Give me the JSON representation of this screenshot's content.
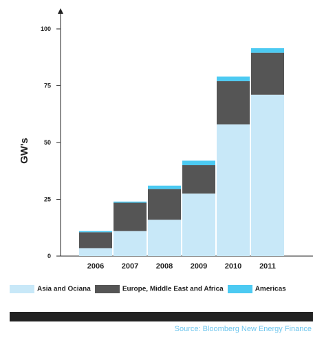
{
  "chart_data": {
    "type": "bar",
    "stacked": true,
    "ylabel": "GW's",
    "xlabel": "",
    "ylim": [
      0,
      100
    ],
    "yticks": [
      0,
      25,
      50,
      75,
      100
    ],
    "categories": [
      "2006",
      "2007",
      "2008",
      "2009",
      "2010",
      "2011"
    ],
    "series": [
      {
        "name": "Asia and Ociana",
        "color": "#c8e8f8",
        "values": [
          3.5,
          11,
          16,
          27.5,
          58,
          71
        ]
      },
      {
        "name": "Europe, Middle East and Africa",
        "color": "#555555",
        "values": [
          7,
          12.5,
          13.5,
          12.5,
          19,
          18.5
        ]
      },
      {
        "name": "Americas",
        "color": "#4ccaf2",
        "values": [
          0.5,
          0.5,
          1.5,
          2,
          2,
          2
        ]
      }
    ],
    "legend_position": "bottom",
    "grid": false
  },
  "source_text": "Source: Bloomberg New Energy Finance"
}
